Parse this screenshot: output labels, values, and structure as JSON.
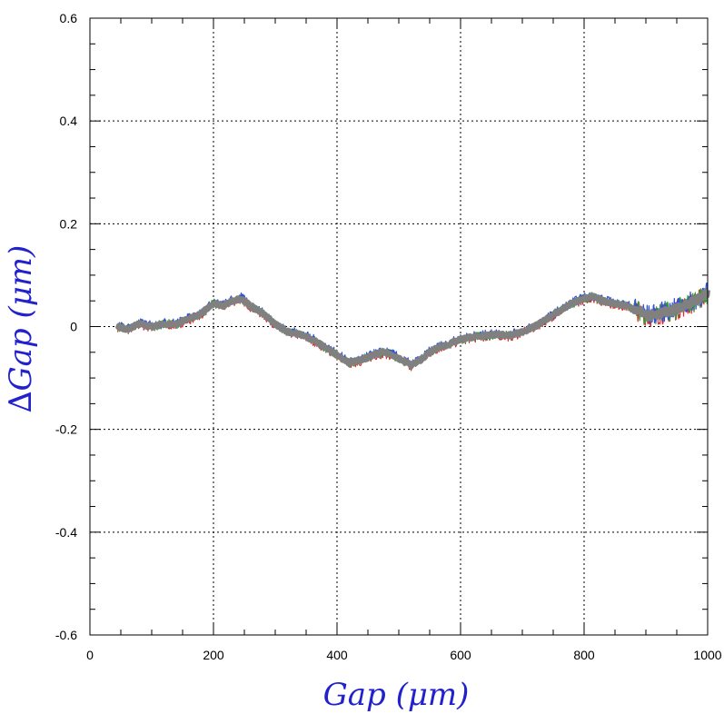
{
  "chart_data": {
    "type": "line",
    "title": "",
    "xlabel": "Gap  (μm)",
    "ylabel": "∆Gap  (μm)",
    "xlim": [
      0,
      1000
    ],
    "ylim": [
      -0.6,
      0.6
    ],
    "x_ticks": [
      "0",
      "200",
      "400",
      "600",
      "800",
      "1000"
    ],
    "y_ticks": [
      "-0.6",
      "-0.4",
      "-0.2",
      "0",
      "0.2",
      "0.4",
      "0.6"
    ],
    "grid": true,
    "grid_style": "dotted",
    "colors": {
      "axis_title": "#2222cc",
      "main_series": "#808080",
      "noise_series": [
        "#e03030",
        "#30a030",
        "#3050e0"
      ]
    },
    "series": [
      {
        "x": [
          45,
          60,
          80,
          100,
          120,
          140,
          160,
          180,
          200,
          215,
          230,
          245,
          260,
          280,
          300,
          320,
          340,
          360,
          380,
          400,
          420,
          440,
          460,
          475,
          490,
          505,
          520,
          535,
          550,
          565,
          580,
          600,
          620,
          640,
          660,
          680,
          700,
          720,
          740,
          760,
          780,
          800,
          815,
          830,
          850,
          870,
          890,
          905,
          920,
          940,
          960,
          980,
          1000
        ],
        "values": [
          0.0,
          -0.005,
          0.005,
          0.0,
          0.005,
          0.005,
          0.015,
          0.025,
          0.045,
          0.04,
          0.05,
          0.055,
          0.04,
          0.025,
          0.005,
          -0.01,
          -0.015,
          -0.025,
          -0.04,
          -0.055,
          -0.07,
          -0.065,
          -0.055,
          -0.05,
          -0.055,
          -0.065,
          -0.075,
          -0.065,
          -0.05,
          -0.04,
          -0.035,
          -0.025,
          -0.02,
          -0.018,
          -0.015,
          -0.018,
          -0.01,
          0.0,
          0.015,
          0.03,
          0.045,
          0.055,
          0.058,
          0.05,
          0.045,
          0.04,
          0.03,
          0.02,
          0.025,
          0.03,
          0.04,
          0.05,
          0.065
        ]
      }
    ]
  }
}
